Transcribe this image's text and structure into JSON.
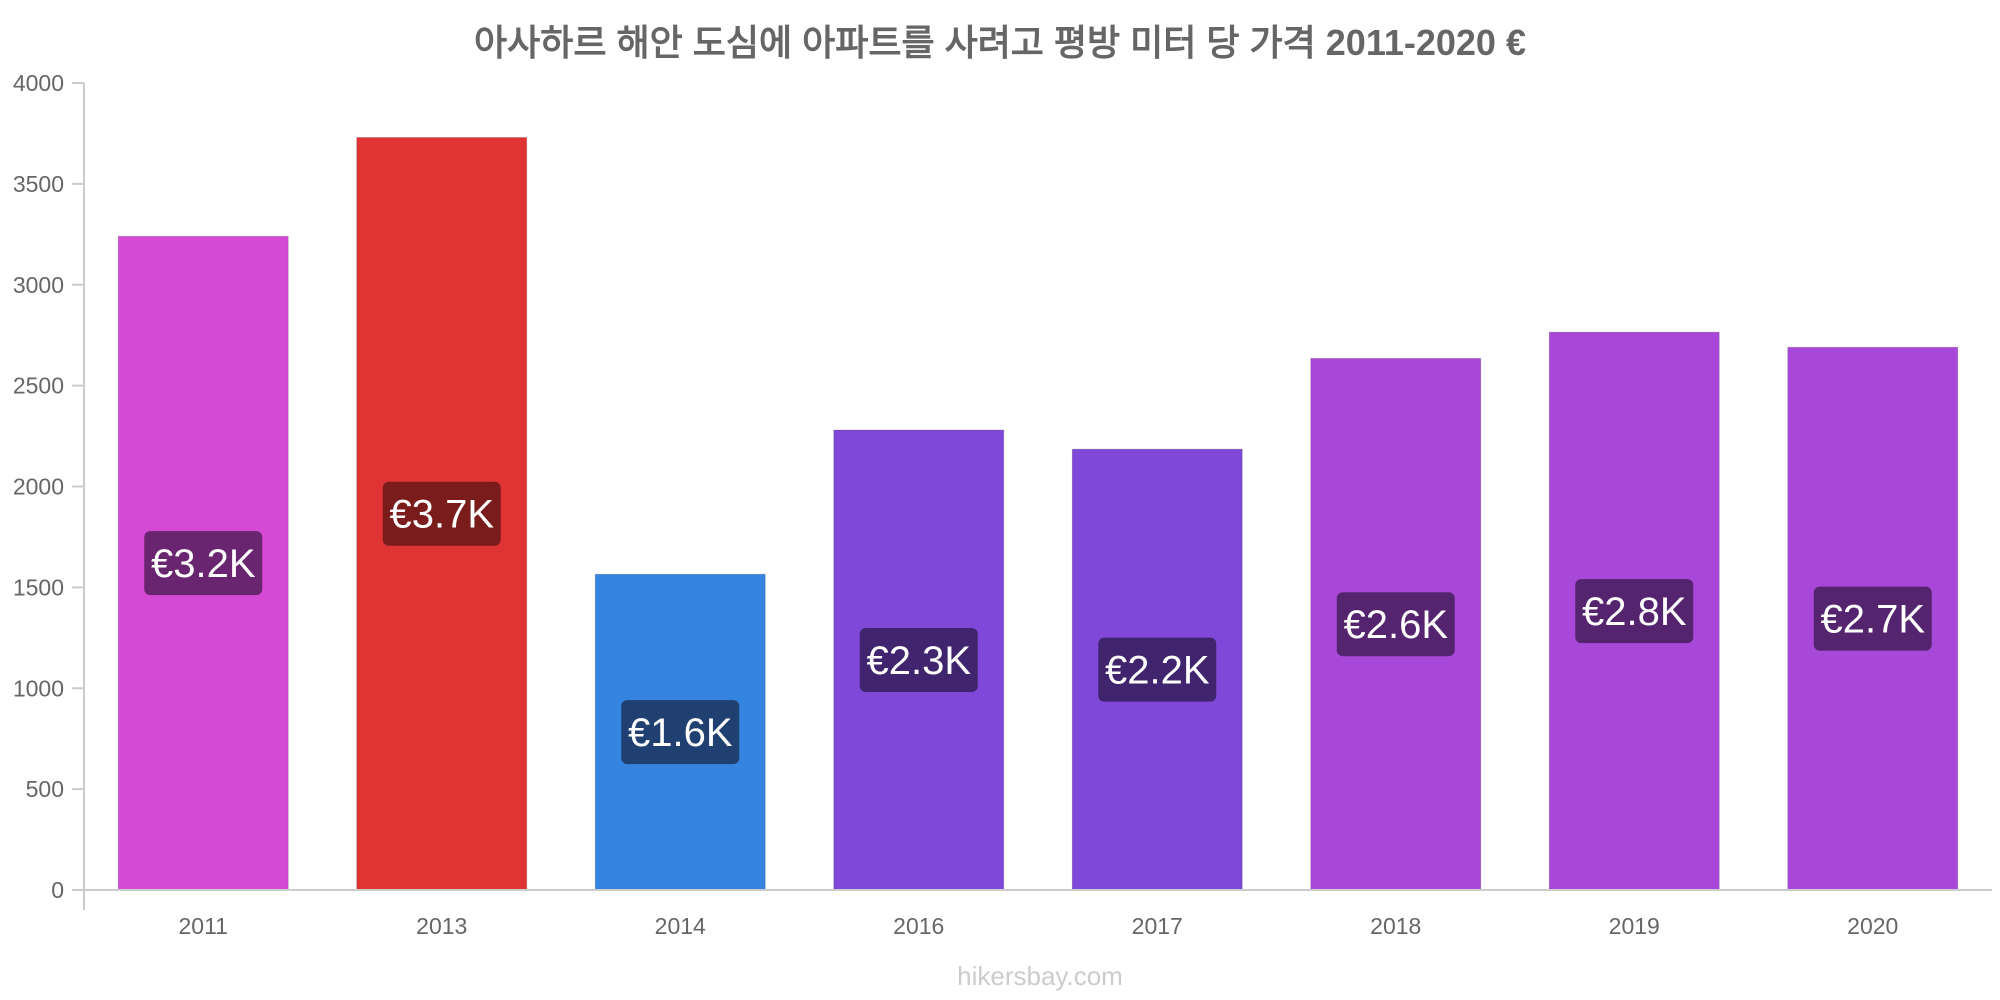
{
  "chart_data": {
    "type": "bar",
    "title": "아사하르 해안 도심에 아파트를 사려고 평방 미터 당 가격 2011-2020 €",
    "categories": [
      "2011",
      "2013",
      "2014",
      "2016",
      "2017",
      "2018",
      "2019",
      "2020"
    ],
    "values": [
      3240,
      3730,
      1565,
      2280,
      2185,
      2635,
      2765,
      2690
    ],
    "value_labels": [
      "€3.2K",
      "€3.7K",
      "€1.6K",
      "€2.3K",
      "€2.2K",
      "€2.6K",
      "€2.8K",
      "€2.7K"
    ],
    "bar_colors": [
      "#d44ad4",
      "#e03434",
      "#3584e0",
      "#7f48d8",
      "#7f48d8",
      "#a848d8",
      "#a848d8",
      "#a848d8"
    ],
    "label_box_colors": [
      "#6a2570",
      "#7a1c1c",
      "#1f4070",
      "#40246e",
      "#40246e",
      "#55246e",
      "#55246e",
      "#55246e"
    ],
    "ylim": [
      0,
      4000
    ],
    "yticks": [
      "0",
      "500",
      "1000",
      "1500",
      "2000",
      "2500",
      "3000",
      "3500",
      "4000"
    ],
    "xlabel": "",
    "ylabel": "",
    "grid": false,
    "legend": "none"
  },
  "watermark": "hikersbay.com"
}
